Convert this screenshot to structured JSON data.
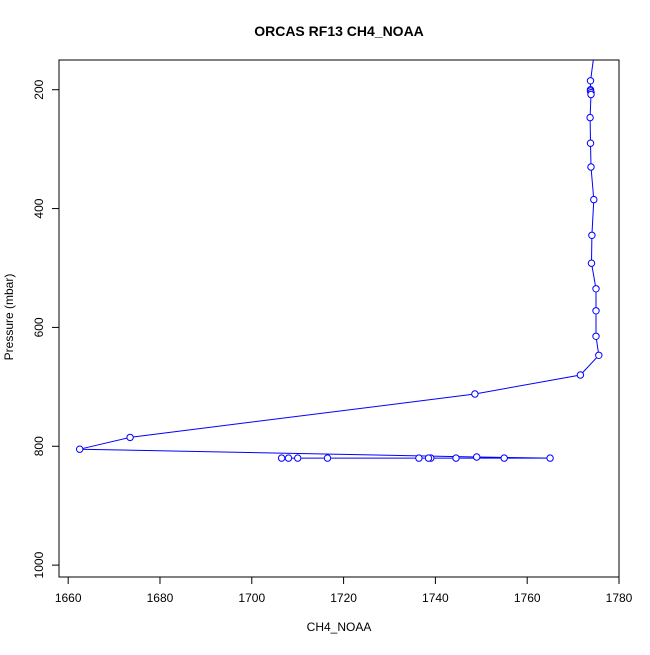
{
  "chart_data": {
    "type": "line",
    "title": "ORCAS RF13 CH4_NOAA",
    "xlabel": "CH4_NOAA",
    "ylabel": "Pressure (mbar)",
    "xlim": [
      1658,
      1780
    ],
    "ylim": [
      1020,
      150
    ],
    "y_reversed": true,
    "x_ticks": [
      1660,
      1680,
      1700,
      1720,
      1740,
      1760,
      1780
    ],
    "y_ticks": [
      200,
      400,
      600,
      800,
      1000
    ],
    "grid": false,
    "legend": "none",
    "series_color": "#0000ff",
    "series": [
      {
        "x": [
          1773.8,
          1773.8,
          1773.8,
          1773.9,
          1773.9,
          1773.7,
          1773.8,
          1773.9,
          1774.5,
          1774.1,
          1774.0,
          1775.0,
          1775.0,
          1775.0,
          1775.6,
          1771.6,
          1748.6,
          1673.5,
          1662.5,
          1749.0,
          1765.0,
          1755.0,
          1744.5,
          1739.0,
          1738.5,
          1736.4,
          1716.5,
          1710.0,
          1708.0,
          1706.5
        ],
        "y": [
          185,
          200,
          202,
          205,
          208,
          247,
          290,
          330,
          385,
          445,
          492,
          535,
          572,
          615,
          647,
          680,
          712,
          785,
          805,
          818,
          820,
          820,
          820,
          820,
          820,
          820,
          820,
          820,
          820,
          820
        ]
      }
    ]
  }
}
